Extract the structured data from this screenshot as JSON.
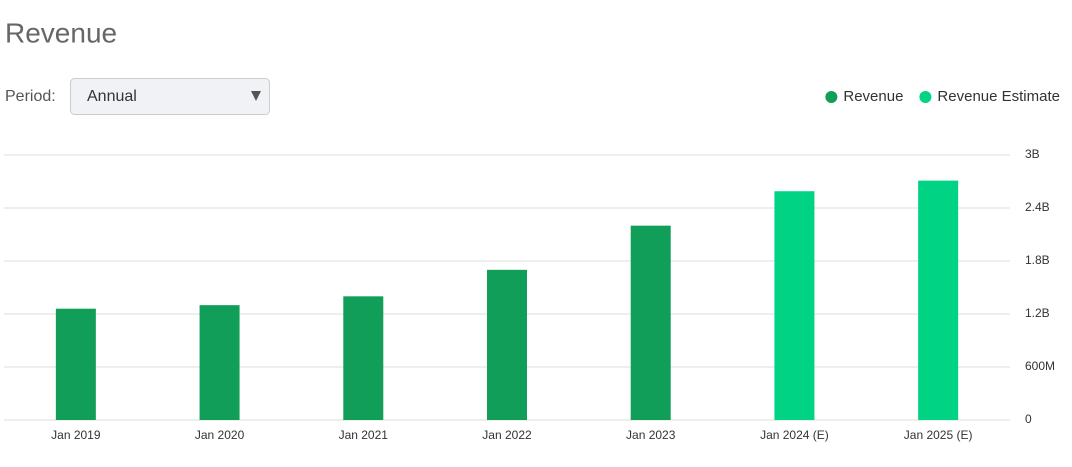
{
  "controls": {
    "period_label": "Period:",
    "period_value": "Annual"
  },
  "chart_data": {
    "type": "bar",
    "title": "Revenue",
    "categories": [
      "Jan 2019",
      "Jan 2020",
      "Jan 2021",
      "Jan 2022",
      "Jan 2023",
      "Jan 2024 (E)",
      "Jan 2025 (E)"
    ],
    "series": [
      {
        "name": "Revenue",
        "color": "#109e58",
        "values": [
          1260000000,
          1300000000,
          1400000000,
          1700000000,
          2200000000,
          null,
          null
        ]
      },
      {
        "name": "Revenue Estimate",
        "color": "#00d484",
        "values": [
          null,
          null,
          null,
          null,
          null,
          2590000000,
          2710000000
        ]
      }
    ],
    "ylim": [
      0,
      3000000000
    ],
    "yticks": [
      0,
      {
        "value": 600000000,
        "label": "600M"
      },
      {
        "value": 1200000000,
        "label": "1.2B"
      },
      {
        "value": 1800000000,
        "label": "1.8B"
      },
      {
        "value": 2400000000,
        "label": "2.4B"
      },
      {
        "value": 3000000000,
        "label": "3B"
      }
    ],
    "grid": true,
    "legend": "top-right"
  }
}
